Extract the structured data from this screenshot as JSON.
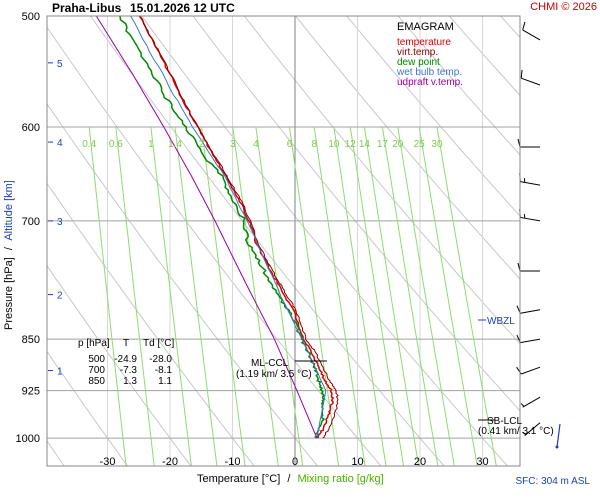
{
  "header": {
    "station": "Praha-Libus",
    "datetime": "15.01.2026 12 UTC",
    "credit": "CHMI © 2026",
    "credit_color": "#cc0000"
  },
  "chart_data": {
    "type": "line",
    "title": "EMAGRAM",
    "xlabel_temp": "Temperature [°C]",
    "xlabel_sep": "/",
    "xlabel_mix": "Mixing ratio [g/kg]",
    "ylabel_pressure": "Pressure [hPa]",
    "ylabel_sep": "/",
    "ylabel_alt": "Altitude [km]",
    "xlim": [
      -40,
      35
    ],
    "ylim_hPa": [
      1000,
      500
    ],
    "x_ticks": [
      -30,
      -20,
      -10,
      0,
      10,
      20,
      30
    ],
    "pressure_ticks": [
      500,
      600,
      700,
      850,
      925,
      1000
    ],
    "altitude_ticks": [
      {
        "km": 1,
        "hPa": 895
      },
      {
        "km": 2,
        "hPa": 790
      },
      {
        "km": 3,
        "hPa": 700
      },
      {
        "km": 4,
        "hPa": 615
      },
      {
        "km": 5,
        "hPa": 540
      }
    ],
    "mixing_ratio_labels": [
      "0.4",
      "0.6",
      "1",
      "1.4",
      "2",
      "3",
      "4",
      "6",
      "8",
      "10",
      "12",
      "14",
      "17",
      "20",
      "25",
      "30"
    ],
    "mixing_ratio_values": [
      0.4,
      0.6,
      1,
      1.4,
      2,
      3,
      4,
      6,
      8,
      10,
      12,
      14,
      17,
      20,
      25,
      30
    ],
    "legend": [
      {
        "name": "temperature",
        "color": "#dd0000"
      },
      {
        "name": "virt.temp.",
        "color": "#880000"
      },
      {
        "name": "dew point",
        "color": "#008800"
      },
      {
        "name": "wet bulb temp.",
        "color": "#3a78d0"
      },
      {
        "name": "udpraft v.temp.",
        "color": "#9900aa"
      }
    ],
    "legend_placement": "top-right",
    "series": [
      {
        "name": "temperature",
        "points": [
          [
            1000,
            3.6
          ],
          [
            985,
            4.5
          ],
          [
            960,
            5.5
          ],
          [
            940,
            6.0
          ],
          [
            925,
            5.8
          ],
          [
            910,
            4.8
          ],
          [
            890,
            3.8
          ],
          [
            870,
            2.8
          ],
          [
            850,
            1.3
          ],
          [
            820,
            0.2
          ],
          [
            800,
            -1.0
          ],
          [
            775,
            -2.8
          ],
          [
            750,
            -4.6
          ],
          [
            725,
            -6.2
          ],
          [
            700,
            -7.3
          ],
          [
            675,
            -9.0
          ],
          [
            650,
            -11.0
          ],
          [
            625,
            -13.3
          ],
          [
            600,
            -15.6
          ],
          [
            575,
            -17.8
          ],
          [
            550,
            -20.0
          ],
          [
            525,
            -22.4
          ],
          [
            500,
            -24.9
          ]
        ]
      },
      {
        "name": "virt.temp.",
        "points": [
          [
            1000,
            4.4
          ],
          [
            985,
            5.4
          ],
          [
            960,
            6.4
          ],
          [
            940,
            6.9
          ],
          [
            925,
            6.6
          ],
          [
            910,
            5.5
          ],
          [
            890,
            4.5
          ],
          [
            870,
            3.4
          ],
          [
            850,
            1.8
          ],
          [
            820,
            0.6
          ],
          [
            800,
            -0.6
          ],
          [
            775,
            -2.5
          ],
          [
            750,
            -4.3
          ],
          [
            725,
            -6.0
          ],
          [
            700,
            -7.1
          ],
          [
            675,
            -8.8
          ],
          [
            650,
            -10.9
          ],
          [
            625,
            -13.2
          ],
          [
            600,
            -15.5
          ],
          [
            575,
            -17.7
          ],
          [
            550,
            -19.9
          ],
          [
            525,
            -22.3
          ],
          [
            500,
            -24.8
          ]
        ]
      },
      {
        "name": "dew point",
        "points": [
          [
            1000,
            3.4
          ],
          [
            985,
            4.0
          ],
          [
            960,
            4.6
          ],
          [
            940,
            4.5
          ],
          [
            925,
            4.3
          ],
          [
            910,
            3.8
          ],
          [
            890,
            3.2
          ],
          [
            870,
            2.3
          ],
          [
            850,
            1.1
          ],
          [
            820,
            -0.4
          ],
          [
            800,
            -2.0
          ],
          [
            775,
            -3.8
          ],
          [
            750,
            -5.7
          ],
          [
            725,
            -7.5
          ],
          [
            700,
            -8.1
          ],
          [
            675,
            -10.0
          ],
          [
            650,
            -11.8
          ],
          [
            625,
            -15.0
          ],
          [
            600,
            -17.5
          ],
          [
            575,
            -20.3
          ],
          [
            550,
            -22.8
          ],
          [
            525,
            -25.5
          ],
          [
            500,
            -28.0
          ]
        ]
      },
      {
        "name": "wet bulb temp.",
        "points": [
          [
            1000,
            3.5
          ],
          [
            925,
            5.0
          ],
          [
            850,
            1.2
          ],
          [
            775,
            -3.2
          ],
          [
            700,
            -7.6
          ],
          [
            650,
            -11.3
          ],
          [
            600,
            -16.4
          ],
          [
            550,
            -21.2
          ],
          [
            500,
            -26.3
          ]
        ]
      },
      {
        "name": "udpraft v.temp.",
        "points": [
          [
            1000,
            3.5
          ],
          [
            925,
            0.3
          ],
          [
            850,
            -3.3
          ],
          [
            775,
            -7.9
          ],
          [
            700,
            -12.8
          ],
          [
            650,
            -16.6
          ],
          [
            600,
            -21.0
          ],
          [
            550,
            -26.0
          ],
          [
            500,
            -31.8
          ]
        ]
      }
    ],
    "annotations": [
      {
        "label": "ML-CCL",
        "detail": "(1.19 km/ 3.5 °C)",
        "hPa": 875
      },
      {
        "label": "SB-LCL",
        "detail": "(0.41 km/ 3.1 °C)",
        "hPa": 965
      },
      {
        "label": "WBZL",
        "hPa": 815
      }
    ],
    "table": {
      "headers": [
        "p [hPa]",
        "T",
        "Td [°C]"
      ],
      "rows": [
        [
          "500",
          "-24.9",
          "-28.0"
        ],
        [
          "700",
          "-7.3",
          "-8.1"
        ],
        [
          "850",
          "1.3",
          "1.1"
        ]
      ]
    },
    "wind_barbs": [
      {
        "hPa": 520,
        "dir": 300,
        "kt": 10
      },
      {
        "hPa": 560,
        "dir": 290,
        "kt": 10
      },
      {
        "hPa": 620,
        "dir": 270,
        "kt": 10
      },
      {
        "hPa": 660,
        "dir": 280,
        "kt": 15
      },
      {
        "hPa": 700,
        "dir": 280,
        "kt": 15
      },
      {
        "hPa": 760,
        "dir": 270,
        "kt": 10
      },
      {
        "hPa": 810,
        "dir": 260,
        "kt": 10
      },
      {
        "hPa": 850,
        "dir": 260,
        "kt": 10
      },
      {
        "hPa": 890,
        "dir": 250,
        "kt": 10
      },
      {
        "hPa": 935,
        "dir": 240,
        "kt": 5
      },
      {
        "hPa": 975,
        "dir": 230,
        "kt": 5
      }
    ],
    "surface": "SFC: 304 m ASL"
  }
}
